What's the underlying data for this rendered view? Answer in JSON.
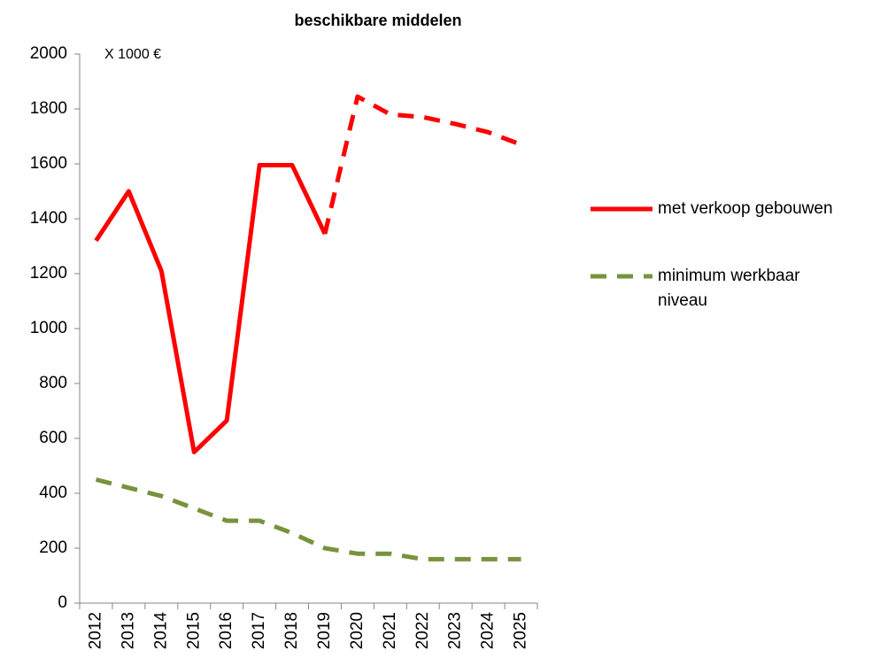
{
  "chart_data": {
    "type": "line",
    "title": "beschikbare middelen",
    "annotation": "X 1000 €",
    "categories": [
      "2012",
      "2013",
      "2014",
      "2015",
      "2016",
      "2017",
      "2018",
      "2019",
      "2020",
      "2021",
      "2022",
      "2023",
      "2024",
      "2025"
    ],
    "series": [
      {
        "name": "met verkoop gebouwen",
        "color": "#ff0000",
        "dash_from": 7,
        "values": [
          1320,
          1500,
          1210,
          550,
          665,
          1595,
          1595,
          1345,
          1845,
          1780,
          1770,
          1745,
          1715,
          1670
        ]
      },
      {
        "name": "minimum werkbaar niveau",
        "color": "#77933c",
        "dashed": true,
        "values": [
          450,
          420,
          390,
          345,
          300,
          300,
          255,
          200,
          180,
          180,
          160,
          160,
          160,
          160
        ]
      }
    ],
    "ylim": [
      0,
      2000
    ],
    "yticks": [
      0,
      200,
      400,
      600,
      800,
      1000,
      1200,
      1400,
      1600,
      1800,
      2000
    ],
    "legend": "right"
  }
}
